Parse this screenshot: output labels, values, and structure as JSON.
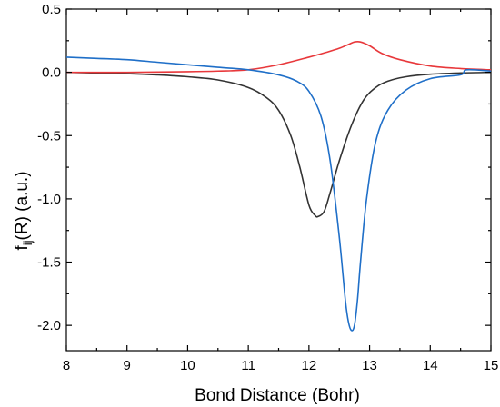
{
  "chart_data": {
    "type": "line",
    "xlabel": "Bond Distance (Bohr)",
    "ylabel_main": "f",
    "ylabel_sub": "ij",
    "ylabel_rest": "(R) (a.u.)",
    "xlim": [
      8,
      15
    ],
    "ylim": [
      -2.2,
      0.5
    ],
    "xticks": [
      8,
      9,
      10,
      11,
      12,
      13,
      14,
      15
    ],
    "xtick_labels": [
      "8",
      "9",
      "10",
      "11",
      "12",
      "13",
      "14",
      "15"
    ],
    "yticks": [
      0.5,
      0.0,
      -0.5,
      -1.0,
      -1.5,
      -2.0
    ],
    "ytick_labels": [
      "0.5",
      "0.0",
      "-0.5",
      "-1.0",
      "-1.5",
      "-2.0"
    ],
    "grid": false,
    "series": [
      {
        "color": "#333333",
        "x": [
          8.0,
          8.5,
          9.0,
          9.5,
          10.0,
          10.5,
          11.0,
          11.3,
          11.5,
          11.7,
          11.85,
          12.0,
          12.1,
          12.15,
          12.25,
          12.35,
          12.5,
          12.7,
          12.9,
          13.1,
          13.3,
          13.6,
          14.0,
          14.5,
          15.0
        ],
        "y": [
          0.0,
          -0.005,
          -0.01,
          -0.02,
          -0.035,
          -0.06,
          -0.12,
          -0.2,
          -0.3,
          -0.5,
          -0.75,
          -1.05,
          -1.13,
          -1.14,
          -1.1,
          -0.95,
          -0.7,
          -0.42,
          -0.22,
          -0.12,
          -0.07,
          -0.035,
          -0.015,
          -0.005,
          0.0
        ]
      },
      {
        "color": "#e8383b",
        "x": [
          8.0,
          9.0,
          10.0,
          10.5,
          11.0,
          11.5,
          12.0,
          12.3,
          12.5,
          12.65,
          12.75,
          12.85,
          13.0,
          13.2,
          13.5,
          14.0,
          14.5,
          15.0
        ],
        "y": [
          0.0,
          0.0,
          0.005,
          0.01,
          0.02,
          0.06,
          0.12,
          0.16,
          0.19,
          0.22,
          0.24,
          0.24,
          0.21,
          0.15,
          0.1,
          0.05,
          0.03,
          0.02
        ]
      },
      {
        "color": "#1f6fc8",
        "x": [
          8.0,
          8.5,
          9.0,
          9.5,
          10.0,
          10.5,
          11.0,
          11.5,
          11.8,
          12.0,
          12.2,
          12.35,
          12.5,
          12.6,
          12.65,
          12.7,
          12.75,
          12.8,
          12.85,
          12.95,
          13.1,
          13.3,
          13.6,
          14.0,
          14.5,
          14.6,
          15.0
        ],
        "y": [
          0.12,
          0.11,
          0.1,
          0.08,
          0.06,
          0.04,
          0.02,
          -0.02,
          -0.07,
          -0.15,
          -0.35,
          -0.7,
          -1.3,
          -1.8,
          -1.97,
          -2.04,
          -2.0,
          -1.8,
          -1.5,
          -1.0,
          -0.55,
          -0.3,
          -0.14,
          -0.05,
          -0.02,
          0.02,
          0.01
        ]
      }
    ]
  }
}
